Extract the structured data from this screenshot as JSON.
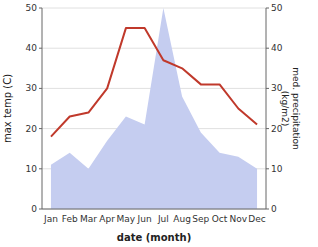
{
  "chart_data": {
    "type": "line",
    "categories": [
      "Jan",
      "Feb",
      "Mar",
      "Apr",
      "May",
      "Jun",
      "Jul",
      "Aug",
      "Sep",
      "Oct",
      "Nov",
      "Dec"
    ],
    "xlabel": "date (month)",
    "ylabel": "max temp (C)",
    "y2label": "med. precipitation\n(kg/m2)",
    "ylim": [
      0,
      50
    ],
    "yticks": [
      0,
      10,
      20,
      30,
      40,
      50
    ],
    "y2lim": [
      0,
      50
    ],
    "y2ticks": [
      0,
      10,
      20,
      30,
      40,
      50
    ],
    "grid": true,
    "series": [
      {
        "type": "area",
        "axis": "y2",
        "color": "#c5cdf0",
        "values": [
          11,
          14,
          10,
          17,
          23,
          21,
          50,
          28,
          19,
          14,
          13,
          10
        ]
      },
      {
        "type": "line",
        "color": "#c0392b",
        "values": [
          18,
          23,
          24,
          30,
          45,
          45,
          37,
          35,
          31,
          31,
          25,
          21
        ]
      }
    ]
  }
}
